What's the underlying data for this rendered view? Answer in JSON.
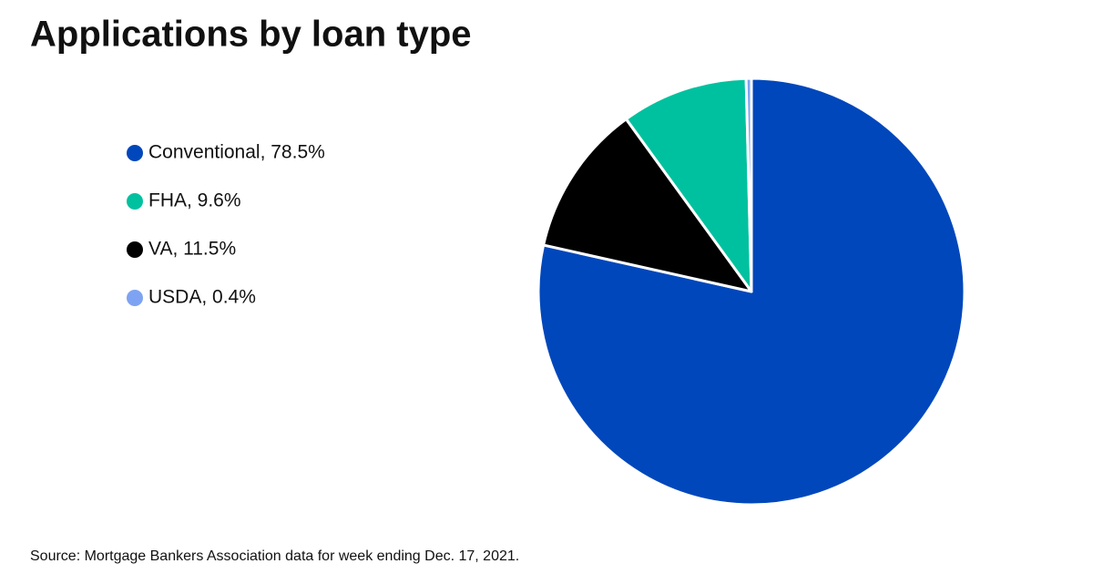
{
  "chart_data": {
    "type": "pie",
    "title": "Applications by loan type",
    "categories": [
      "Conventional, 78.5%",
      "VA, 11.5%",
      "FHA, 9.6%",
      "USDA, 0.4%"
    ],
    "values": [
      78.5,
      11.5,
      9.6,
      0.4
    ],
    "colors": [
      "#0047bb",
      "#000000",
      "#00c19f",
      "#7ea3f2"
    ],
    "source": "Source: Mortgage Bankers Association data for week ending Dec. 17, 2021.",
    "legend": "left"
  }
}
